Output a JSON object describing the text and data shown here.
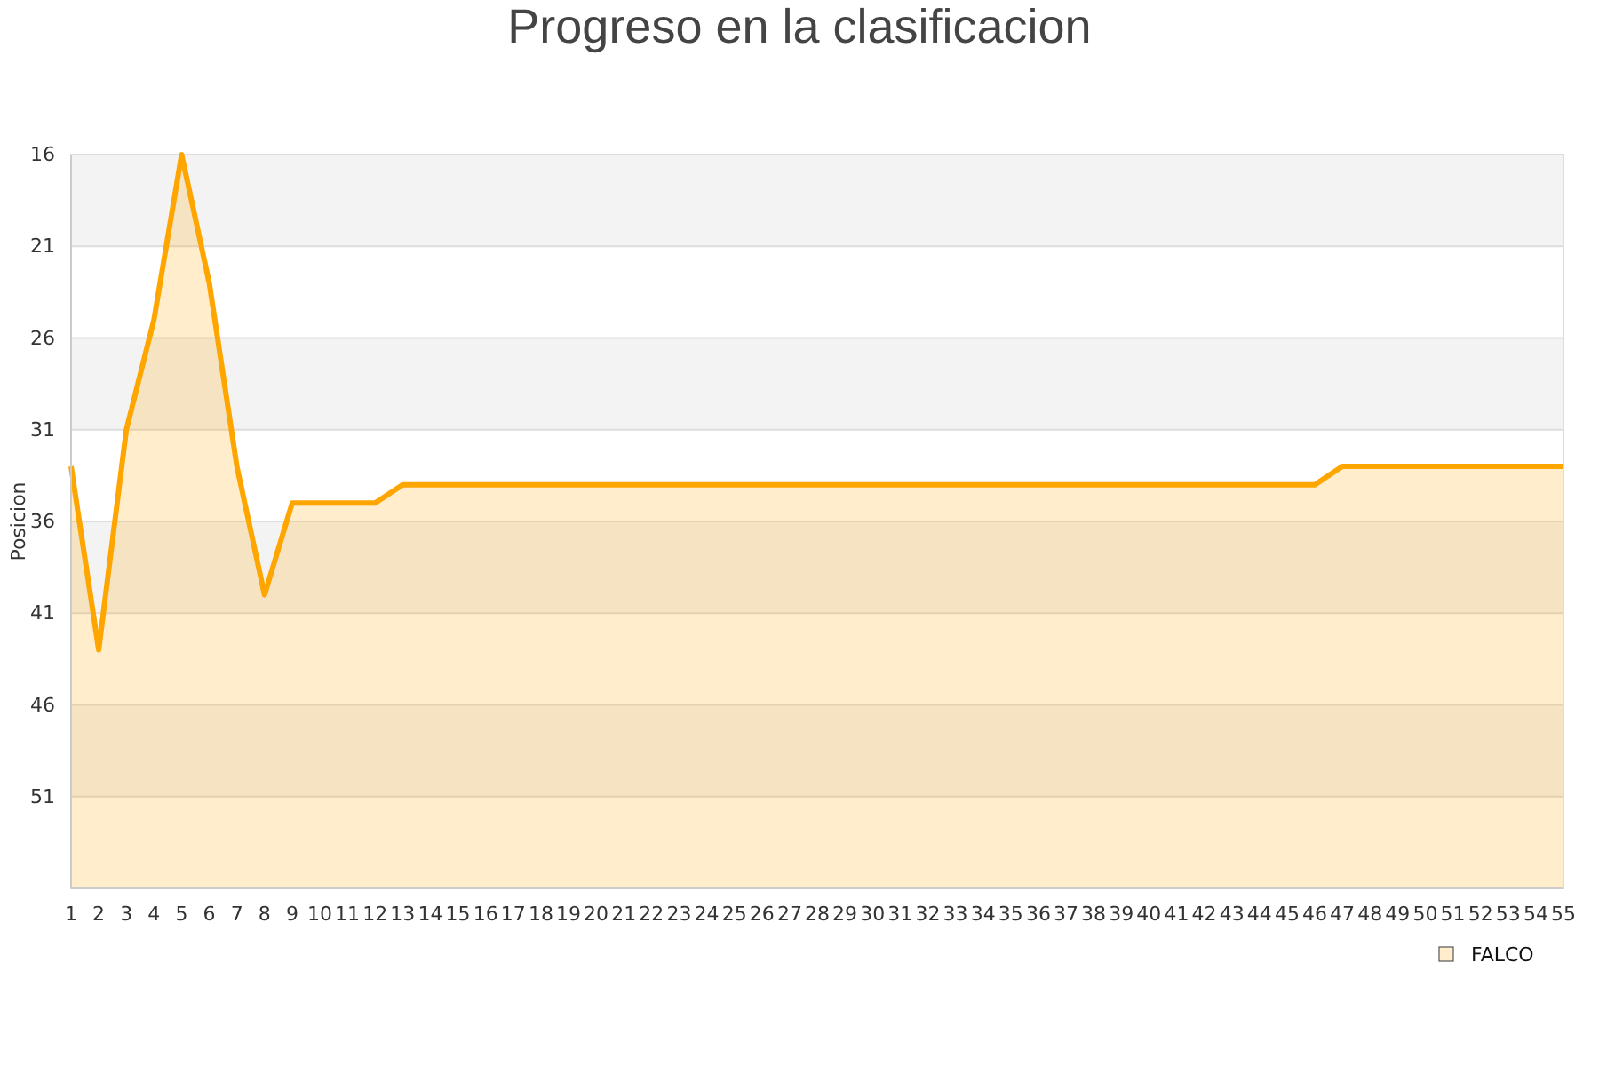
{
  "chart_data": {
    "type": "line",
    "title": "Progreso en la clasificacion",
    "ylabel": "Posicion",
    "x": [
      1,
      2,
      3,
      4,
      5,
      6,
      7,
      8,
      9,
      10,
      11,
      12,
      13,
      14,
      15,
      16,
      17,
      18,
      19,
      20,
      21,
      22,
      23,
      24,
      25,
      26,
      27,
      28,
      29,
      30,
      31,
      32,
      33,
      34,
      35,
      36,
      37,
      38,
      39,
      40,
      41,
      42,
      43,
      44,
      45,
      46,
      47,
      48,
      49,
      50,
      51,
      52,
      53,
      54,
      55
    ],
    "series": [
      {
        "name": "FALCO",
        "color": "#ffa500",
        "values": [
          33,
          43,
          31,
          25,
          16,
          23,
          33,
          40,
          35,
          35,
          35,
          35,
          34,
          34,
          34,
          34,
          34,
          34,
          34,
          34,
          34,
          34,
          34,
          34,
          34,
          34,
          34,
          34,
          34,
          34,
          34,
          34,
          34,
          34,
          34,
          34,
          34,
          34,
          34,
          34,
          34,
          34,
          34,
          34,
          34,
          34,
          33,
          33,
          33,
          33,
          33,
          33,
          33,
          33,
          33
        ],
        "lower": [
          33,
          43,
          31,
          25,
          16,
          23,
          33,
          40,
          35,
          35,
          35,
          35,
          34,
          34,
          34,
          34,
          34,
          34,
          34,
          34,
          34,
          34,
          34,
          34,
          34,
          34,
          34,
          34,
          34,
          34,
          34,
          34,
          34,
          34,
          34,
          34,
          34,
          34,
          34,
          34,
          34,
          34,
          34,
          34,
          34,
          34,
          33,
          33,
          33,
          33,
          33,
          33,
          33,
          33,
          33
        ],
        "upper": [
          56,
          56,
          56,
          56,
          56,
          56,
          56,
          56,
          56,
          56,
          56,
          56,
          56,
          56,
          56,
          56,
          56,
          56,
          56,
          56,
          56,
          56,
          56,
          56,
          56,
          56,
          56,
          56,
          56,
          56,
          56,
          56,
          56,
          56,
          56,
          56,
          56,
          56,
          56,
          56,
          56,
          56,
          56,
          56,
          56,
          56,
          56,
          56,
          56,
          56,
          56,
          56,
          56,
          56,
          56
        ]
      }
    ],
    "xlim": [
      1,
      55
    ],
    "xticks": [
      1,
      2,
      3,
      4,
      5,
      6,
      7,
      8,
      9,
      10,
      11,
      12,
      13,
      14,
      15,
      16,
      17,
      18,
      19,
      20,
      21,
      22,
      23,
      24,
      25,
      26,
      27,
      28,
      29,
      30,
      31,
      32,
      33,
      34,
      35,
      36,
      37,
      38,
      39,
      40,
      41,
      42,
      43,
      44,
      45,
      46,
      47,
      48,
      49,
      50,
      51,
      52,
      53,
      54,
      55
    ],
    "ylim": [
      56,
      16
    ],
    "yticks": [
      16,
      21,
      26,
      31,
      36,
      41,
      46,
      51
    ],
    "grid": "y",
    "legend": "bottom right",
    "marker": "none",
    "line_style": "solid"
  }
}
